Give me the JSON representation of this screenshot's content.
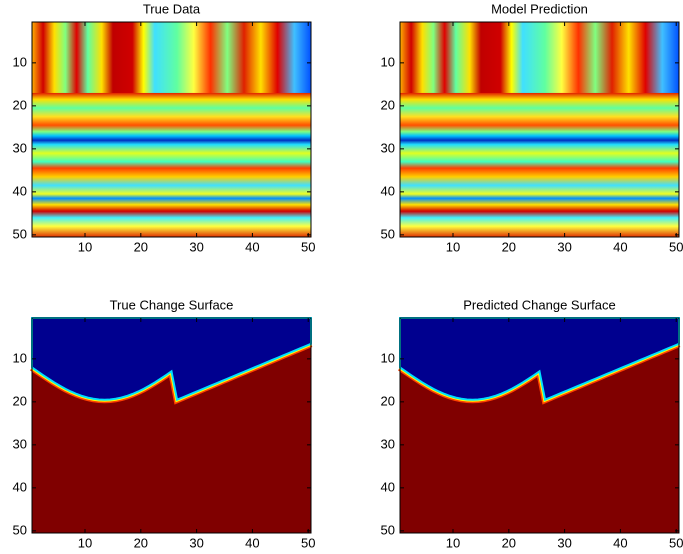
{
  "chart_data": [
    {
      "type": "heatmap",
      "title": "True Data",
      "xlim": [
        0.5,
        50.5
      ],
      "ylim": [
        0.5,
        50.5
      ],
      "yreverse": true,
      "xticks": [
        10,
        20,
        30,
        40,
        50
      ],
      "yticks": [
        10,
        20,
        30,
        40,
        50
      ]
    },
    {
      "type": "heatmap",
      "title": "Model Prediction",
      "xlim": [
        0.5,
        50.5
      ],
      "ylim": [
        0.5,
        50.5
      ],
      "yreverse": true,
      "xticks": [
        10,
        20,
        30,
        40,
        50
      ],
      "yticks": [
        10,
        20,
        30,
        40,
        50
      ]
    },
    {
      "type": "heatmap",
      "title": "True Change Surface",
      "xlim": [
        0.5,
        50.5
      ],
      "ylim": [
        0.5,
        50.5
      ],
      "yreverse": true,
      "xticks": [
        10,
        20,
        30,
        40,
        50
      ],
      "yticks": [
        10,
        20,
        30,
        40,
        50
      ]
    },
    {
      "type": "heatmap",
      "title": "Predicted Change Surface",
      "xlim": [
        0.5,
        50.5
      ],
      "ylim": [
        0.5,
        50.5
      ],
      "yreverse": true,
      "xticks": [
        10,
        20,
        30,
        40,
        50
      ],
      "yticks": [
        10,
        20,
        30,
        40,
        50
      ]
    }
  ]
}
